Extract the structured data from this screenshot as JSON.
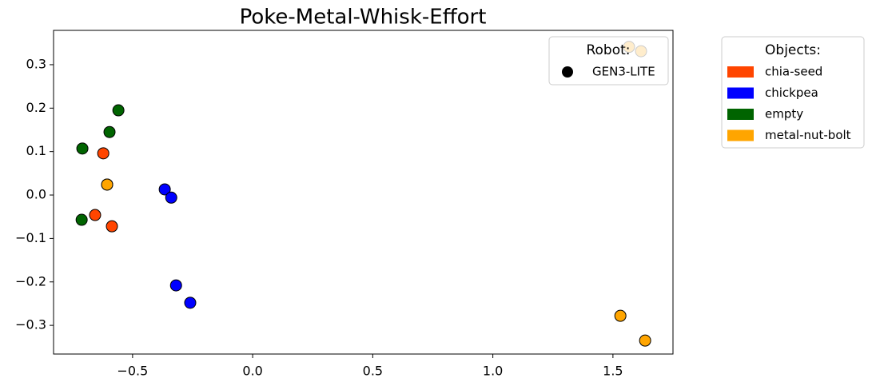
{
  "chart_data": {
    "type": "scatter",
    "title": "Poke-Metal-Whisk-Effort",
    "xlim": [
      -0.829,
      1.75
    ],
    "ylim": [
      -0.366,
      0.379
    ],
    "xticks": [
      {
        "value": -0.5,
        "label": "−0.5"
      },
      {
        "value": 0,
        "label": "0.0"
      },
      0.5,
      {
        "value": 1,
        "label": "1.0"
      },
      1.5
    ],
    "yticks": [
      {
        "value": -0.3,
        "label": "−0.3"
      },
      {
        "value": -0.2,
        "label": "−0.2"
      },
      {
        "value": -0.1,
        "label": "−0.1"
      },
      {
        "value": 0,
        "label": "0.0"
      },
      0.1,
      0.2,
      0.3
    ],
    "robot_legend_title": "Robot:",
    "robots": [
      "GEN3-LITE"
    ],
    "robot_marker_color": "#000000",
    "objects_legend_title": "Objects:",
    "series": [
      {
        "name": "chia-seed",
        "color": "#ff4500",
        "x": [
          -0.622,
          -0.656,
          -0.586
        ],
        "values": [
          0.096,
          -0.046,
          -0.072
        ]
      },
      {
        "name": "chickpea",
        "color": "#0000ff",
        "x": [
          -0.366,
          -0.339,
          -0.319,
          -0.26
        ],
        "values": [
          0.013,
          -0.006,
          -0.208,
          -0.248
        ]
      },
      {
        "name": "empty",
        "color": "#006400",
        "x": [
          -0.559,
          -0.596,
          -0.709,
          -0.712
        ],
        "values": [
          0.195,
          0.145,
          0.107,
          -0.057
        ]
      },
      {
        "name": "metal-nut-bolt",
        "color": "#ffa500",
        "x": [
          -0.606,
          -0.606,
          1.531,
          1.634,
          1.567,
          1.617
        ],
        "values": [
          0.024,
          0.024,
          -0.278,
          -0.335,
          0.341,
          0.331
        ]
      }
    ]
  }
}
